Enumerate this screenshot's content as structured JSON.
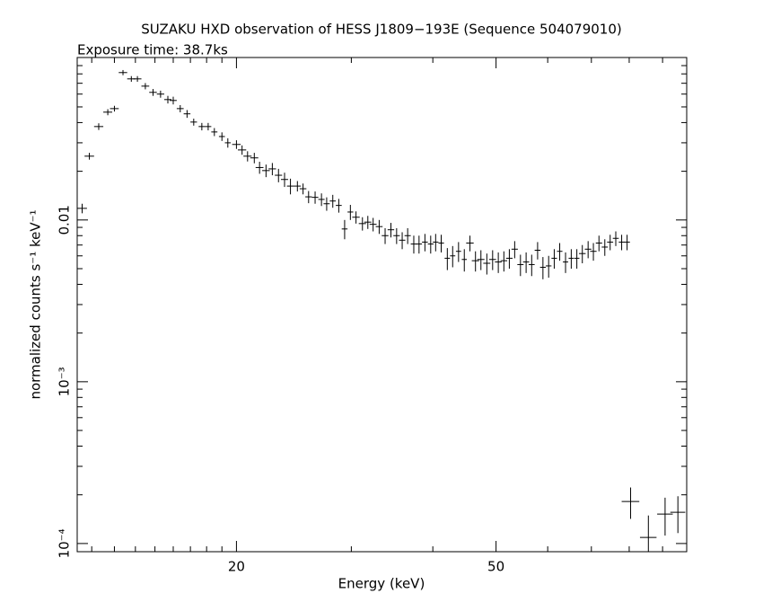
{
  "chart_data": {
    "type": "errorbar",
    "title": "SUZAKU HXD observation of HESS J1809−193E (Sequence 504079010)",
    "subtitle": "Exposure time: 38.7ks",
    "x_label": "Energy (keV)",
    "y_label": "normalized counts s⁻¹ keV⁻¹",
    "xlog": true,
    "ylog": true,
    "xlim": [
      11.4,
      98
    ],
    "ylim": [
      8.9e-05,
      0.101
    ],
    "xticks": [
      20,
      50
    ],
    "xminorticks": [
      12,
      13,
      14,
      15,
      16,
      17,
      18,
      19,
      30,
      40,
      60,
      70,
      80,
      90
    ],
    "yticks": [
      {
        "value": 0.0001,
        "label": "10⁻⁴"
      },
      {
        "value": 0.001,
        "label": "10⁻³"
      },
      0.01
    ],
    "yminorticks": [
      0.0002,
      0.0003,
      0.0004,
      0.0005,
      0.0006,
      0.0007,
      0.0008,
      0.0009,
      0.002,
      0.003,
      0.004,
      0.005,
      0.006,
      0.007,
      0.008,
      0.009,
      0.02,
      0.03,
      0.04,
      0.05,
      0.06,
      0.07,
      0.08,
      0.09
    ],
    "color": "#000000",
    "x": [
      11.6,
      11.9,
      12.3,
      12.7,
      13.0,
      13.4,
      13.8,
      14.1,
      14.5,
      14.9,
      15.3,
      15.7,
      16.0,
      16.4,
      16.8,
      17.2,
      17.7,
      18.1,
      18.5,
      19.0,
      19.4,
      20.0,
      20.4,
      20.8,
      21.3,
      21.7,
      22.2,
      22.7,
      23.2,
      23.7,
      24.2,
      24.8,
      25.3,
      25.8,
      26.4,
      27.0,
      27.5,
      28.1,
      28.7,
      29.3,
      29.9,
      30.5,
      31.2,
      31.8,
      32.4,
      33.1,
      33.8,
      34.5,
      35.2,
      35.9,
      36.6,
      37.4,
      38.1,
      38.9,
      39.7,
      40.4,
      41.2,
      42.1,
      42.9,
      43.8,
      44.7,
      45.6,
      46.5,
      47.4,
      48.4,
      49.4,
      50.4,
      51.4,
      52.4,
      53.4,
      54.5,
      55.6,
      56.7,
      57.9,
      59.0,
      60.2,
      61.4,
      62.6,
      63.9,
      65.2,
      66.5,
      67.8,
      69.2,
      70.5,
      71.9,
      73.4,
      74.8,
      76.3,
      77.9,
      79.4,
      80.4,
      85.6,
      90.8,
      95.0
    ],
    "xerr": [
      0.2,
      0.2,
      0.2,
      0.2,
      0.2,
      0.2,
      0.2,
      0.2,
      0.2,
      0.2,
      0.2,
      0.2,
      0.2,
      0.2,
      0.2,
      0.2,
      0.2,
      0.2,
      0.2,
      0.2,
      0.2,
      0.3,
      0.3,
      0.3,
      0.3,
      0.3,
      0.3,
      0.3,
      0.3,
      0.3,
      0.3,
      0.3,
      0.3,
      0.3,
      0.3,
      0.3,
      0.3,
      0.3,
      0.3,
      0.3,
      0.3,
      0.4,
      0.4,
      0.4,
      0.4,
      0.4,
      0.4,
      0.4,
      0.4,
      0.4,
      0.4,
      0.4,
      0.4,
      0.4,
      0.4,
      0.4,
      0.4,
      0.4,
      0.4,
      0.4,
      0.4,
      0.6,
      0.6,
      0.6,
      0.6,
      0.6,
      0.6,
      0.6,
      0.6,
      0.6,
      0.6,
      0.6,
      0.6,
      0.6,
      0.6,
      0.6,
      0.6,
      0.6,
      0.6,
      0.6,
      0.6,
      0.8,
      0.8,
      0.8,
      0.8,
      0.8,
      0.8,
      0.8,
      0.8,
      0.8,
      2.5,
      2.5,
      2.5,
      2.5
    ],
    "values": [
      0.0118,
      0.0248,
      0.0378,
      0.0464,
      0.0488,
      0.0815,
      0.0745,
      0.0745,
      0.0672,
      0.0615,
      0.06,
      0.0555,
      0.0548,
      0.0488,
      0.0453,
      0.0403,
      0.0378,
      0.0378,
      0.035,
      0.0328,
      0.03,
      0.0293,
      0.0271,
      0.0248,
      0.0242,
      0.0211,
      0.0202,
      0.0207,
      0.0189,
      0.0178,
      0.0162,
      0.0162,
      0.0156,
      0.0139,
      0.0138,
      0.0134,
      0.0126,
      0.0131,
      0.0123,
      0.0088,
      0.0112,
      0.0104,
      0.0095,
      0.0097,
      0.0094,
      0.0091,
      0.008,
      0.0087,
      0.008,
      0.0075,
      0.008,
      0.0071,
      0.0071,
      0.0073,
      0.0071,
      0.0073,
      0.0072,
      0.0058,
      0.006,
      0.0064,
      0.0057,
      0.0072,
      0.0056,
      0.0057,
      0.0054,
      0.0057,
      0.0055,
      0.0056,
      0.0058,
      0.0066,
      0.0053,
      0.0055,
      0.0053,
      0.0065,
      0.0051,
      0.0052,
      0.0058,
      0.0064,
      0.0055,
      0.0058,
      0.0058,
      0.0062,
      0.0066,
      0.0064,
      0.0072,
      0.0068,
      0.0073,
      0.0077,
      0.0073,
      0.0073,
      0.000182,
      0.000109,
      0.000152,
      0.000156
    ],
    "yerr": [
      0.0008,
      0.0012,
      0.0018,
      0.002,
      0.002,
      0.003,
      0.003,
      0.003,
      0.003,
      0.003,
      0.003,
      0.003,
      0.003,
      0.0025,
      0.0025,
      0.002,
      0.002,
      0.002,
      0.002,
      0.002,
      0.002,
      0.0018,
      0.0018,
      0.0018,
      0.0018,
      0.0018,
      0.0018,
      0.0018,
      0.0018,
      0.0018,
      0.0018,
      0.0012,
      0.0012,
      0.0012,
      0.0012,
      0.0012,
      0.0012,
      0.0012,
      0.0012,
      0.0012,
      0.0012,
      0.0009,
      0.0009,
      0.0009,
      0.0009,
      0.0009,
      0.0009,
      0.0009,
      0.0009,
      0.0009,
      0.0009,
      0.0009,
      0.0009,
      0.0009,
      0.0009,
      0.0009,
      0.0009,
      0.0009,
      0.0009,
      0.0009,
      0.0009,
      0.0008,
      0.0008,
      0.0008,
      0.0008,
      0.0008,
      0.0008,
      0.0008,
      0.0008,
      0.0008,
      0.0008,
      0.0008,
      0.0008,
      0.0008,
      0.0008,
      0.0008,
      0.0008,
      0.0008,
      0.0008,
      0.0008,
      0.0008,
      0.0008,
      0.0008,
      0.0008,
      0.0008,
      0.0008,
      0.0008,
      0.0008,
      0.0008,
      0.0008,
      4e-05,
      4e-05,
      4e-05,
      4e-05
    ]
  }
}
